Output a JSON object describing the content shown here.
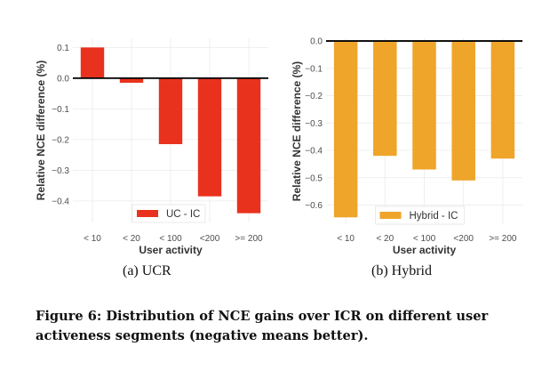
{
  "chart_data": [
    {
      "type": "bar",
      "title": "",
      "subcaption": "(a) UCR",
      "xlabel": "User activity",
      "ylabel": "Relative NCE difference (%)",
      "categories": [
        "< 10",
        "< 20",
        "< 100",
        "<200",
        ">= 200"
      ],
      "series": [
        {
          "name": "UC - IC",
          "values": [
            0.1,
            -0.015,
            -0.215,
            -0.385,
            -0.44
          ],
          "color": "#e8321e"
        }
      ],
      "ylim": [
        -0.47,
        0.13
      ],
      "yticks": [
        0.1,
        0.0,
        -0.1,
        -0.2,
        -0.3,
        -0.4
      ],
      "ytick_labels": [
        "0.1",
        "0.0",
        "−0.1",
        "−0.2",
        "−0.3",
        "−0.4"
      ],
      "grid": true,
      "legend": "bottom-center",
      "zero_line": true
    },
    {
      "type": "bar",
      "title": "",
      "subcaption": "(b) Hybrid",
      "xlabel": "User activity",
      "ylabel": "Relative NCE difference (%)",
      "categories": [
        "< 10",
        "< 20",
        "< 100",
        "<200",
        ">= 200"
      ],
      "series": [
        {
          "name": "Hybrid - IC",
          "values": [
            -0.645,
            -0.42,
            -0.47,
            -0.51,
            -0.43
          ],
          "color": "#eea52a"
        }
      ],
      "ylim": [
        -0.67,
        0.01
      ],
      "yticks": [
        0.0,
        -0.1,
        -0.2,
        -0.3,
        -0.4,
        -0.5,
        -0.6
      ],
      "ytick_labels": [
        "0.0",
        "−0.1",
        "−0.2",
        "−0.3",
        "−0.4",
        "−0.5",
        "−0.6"
      ],
      "grid": true,
      "legend": "bottom-center",
      "zero_line": true
    }
  ],
  "subcaptions": [
    "(a) UCR",
    "(b) Hybrid"
  ],
  "caption": "Figure 6: Distribution of NCE gains over ICR on different user activeness segments (negative means better)."
}
